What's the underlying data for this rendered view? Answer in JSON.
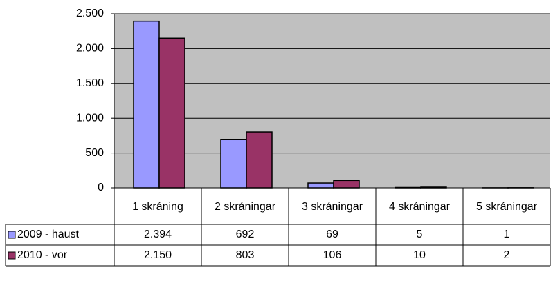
{
  "chart_data": {
    "type": "bar",
    "categories": [
      "1 skráning",
      "2 skráningar",
      "3 skráningar",
      "4 skráningar",
      "5 skráningar"
    ],
    "series": [
      {
        "name": "2009 - haust",
        "color": "#9999ff",
        "values": [
          2394,
          692,
          69,
          5,
          1
        ],
        "value_labels": [
          "2.394",
          "692",
          "69",
          "5",
          "1"
        ]
      },
      {
        "name": "2010 - vor",
        "color": "#993366",
        "values": [
          2150,
          803,
          106,
          10,
          2
        ],
        "value_labels": [
          "2.150",
          "803",
          "106",
          "10",
          "2"
        ]
      }
    ],
    "ylim": [
      0,
      2500
    ],
    "yticks": [
      0,
      500,
      {
        "value": 1000,
        "label": "1.000"
      },
      {
        "value": 1500,
        "label": "1.500"
      },
      {
        "value": 2000,
        "label": "2.000"
      },
      {
        "value": 2500,
        "label": "2.500"
      }
    ],
    "grid": true,
    "plot_background": "#c0c0c0"
  }
}
